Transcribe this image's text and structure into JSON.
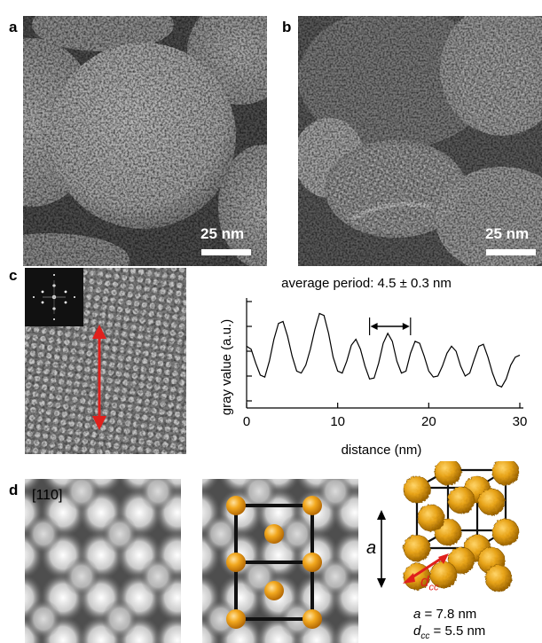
{
  "panels": {
    "a": {
      "label": "a",
      "scale_bar": "25 nm"
    },
    "b": {
      "label": "b",
      "scale_bar": "25 nm"
    },
    "c": {
      "label": "c"
    },
    "d": {
      "label": "d",
      "direction": "[110]"
    }
  },
  "chart_data": {
    "type": "line",
    "annotation": "average period: 4.5 ± 0.3 nm",
    "xlabel": "distance (nm)",
    "ylabel": "gray value (a.u.)",
    "xlim": [
      0,
      30
    ],
    "x_ticks": [
      "0",
      "10",
      "20",
      "30"
    ],
    "y_ticks_labelled": false,
    "period_marker": {
      "from": 13.5,
      "to": 18.0
    },
    "series": [
      {
        "x": [
          0,
          0.5,
          1.0,
          1.5,
          2.0,
          2.5,
          3.0,
          3.5,
          4.0,
          4.5,
          5.0,
          5.5,
          6.0,
          6.5,
          7.0,
          7.5,
          8.0,
          8.5,
          9.0,
          9.5,
          10.0,
          10.5,
          11.0,
          11.5,
          12.0,
          12.5,
          13.0,
          13.5,
          14.0,
          14.5,
          15.0,
          15.5,
          16.0,
          16.5,
          17.0,
          17.5,
          18.0,
          18.5,
          19.0,
          19.5,
          20.0,
          20.5,
          21.0,
          21.5,
          22.0,
          22.5,
          23.0,
          23.5,
          24.0,
          24.5,
          25.0,
          25.5,
          26.0,
          26.5,
          27.0,
          27.5,
          28.0,
          28.5,
          29.0,
          29.5,
          30.0
        ],
        "values": [
          0.55,
          0.52,
          0.38,
          0.26,
          0.24,
          0.4,
          0.62,
          0.78,
          0.8,
          0.65,
          0.45,
          0.3,
          0.28,
          0.36,
          0.52,
          0.72,
          0.88,
          0.86,
          0.68,
          0.44,
          0.3,
          0.28,
          0.4,
          0.56,
          0.62,
          0.52,
          0.35,
          0.22,
          0.23,
          0.38,
          0.58,
          0.68,
          0.6,
          0.4,
          0.28,
          0.3,
          0.48,
          0.6,
          0.58,
          0.45,
          0.3,
          0.24,
          0.25,
          0.35,
          0.48,
          0.55,
          0.5,
          0.35,
          0.25,
          0.28,
          0.42,
          0.55,
          0.57,
          0.44,
          0.28,
          0.16,
          0.14,
          0.22,
          0.36,
          0.44,
          0.46
        ]
      }
    ]
  },
  "model": {
    "axis_label": "a",
    "dcc_label": "d",
    "dcc_sub": "cc",
    "lattice_a": "a",
    "lattice_a_value": " = 7.8 nm",
    "dcc_value_sym": "d",
    "dcc_value_sub": "cc",
    "dcc_value": " = 5.5 nm"
  },
  "colors": {
    "sphere": "#e7a318",
    "arrow_red": "#e0201c",
    "fft_bg": "#111111"
  }
}
